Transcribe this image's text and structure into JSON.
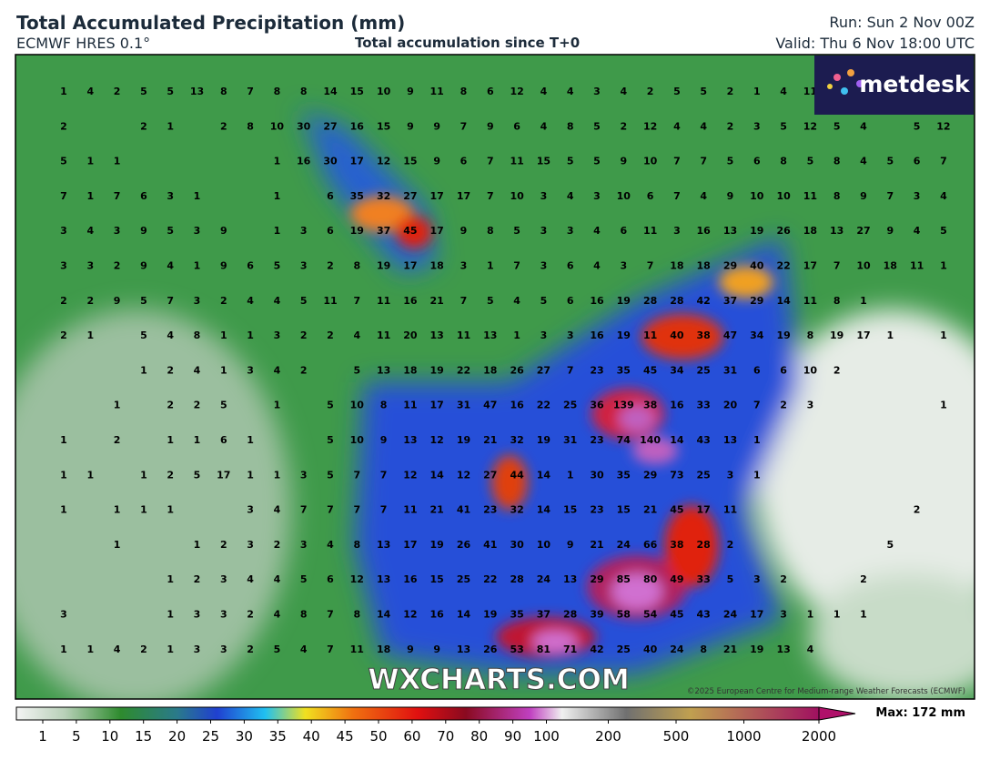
{
  "header": {
    "title": "Total Accumulated Precipitation (mm)",
    "model": "ECMWF HRES 0.1°",
    "subtitle": "Total accumulation since T+0",
    "run": "Run: Sun 2 Nov 00Z",
    "valid": "Valid: Thu 6 Nov 18:00 UTC"
  },
  "logo": "metdesk",
  "watermark": "WXCHARTS.COM",
  "copyright": "©2025 European Centre for Medium-range Weather Forecasts (ECMWF)",
  "max_label": "Max: 172 mm",
  "colorbar_ticks": [
    1,
    5,
    10,
    15,
    20,
    25,
    30,
    35,
    40,
    45,
    50,
    60,
    70,
    80,
    90,
    100,
    200,
    500,
    1000,
    2000
  ],
  "grid": {
    "rows": [
      [
        1,
        4,
        2,
        5,
        5,
        13,
        8,
        7,
        8,
        8,
        14,
        15,
        10,
        9,
        11,
        8,
        6,
        12,
        4,
        4,
        3,
        4,
        2,
        5,
        5,
        2,
        1,
        4,
        11,
        null,
        null,
        null,
        null,
        null
      ],
      [
        2,
        null,
        null,
        2,
        1,
        null,
        2,
        8,
        10,
        30,
        27,
        16,
        15,
        9,
        9,
        7,
        9,
        6,
        4,
        8,
        5,
        2,
        12,
        4,
        4,
        2,
        3,
        5,
        12,
        5,
        4,
        null,
        5,
        12
      ],
      [
        5,
        1,
        1,
        null,
        null,
        null,
        null,
        null,
        1,
        16,
        30,
        17,
        12,
        15,
        9,
        6,
        7,
        11,
        15,
        5,
        5,
        9,
        10,
        7,
        7,
        5,
        6,
        8,
        5,
        8,
        4,
        5,
        6,
        7
      ],
      [
        7,
        1,
        7,
        6,
        3,
        1,
        null,
        null,
        1,
        null,
        6,
        35,
        32,
        27,
        17,
        17,
        7,
        10,
        3,
        4,
        3,
        10,
        6,
        7,
        4,
        9,
        10,
        10,
        11,
        8,
        9,
        7,
        3,
        4
      ],
      [
        3,
        4,
        3,
        9,
        5,
        3,
        9,
        null,
        1,
        3,
        6,
        19,
        37,
        45,
        17,
        9,
        8,
        5,
        3,
        3,
        4,
        6,
        11,
        3,
        16,
        13,
        19,
        26,
        18,
        13,
        27,
        9,
        4,
        5
      ],
      [
        3,
        3,
        2,
        9,
        4,
        1,
        9,
        6,
        5,
        3,
        2,
        8,
        19,
        17,
        18,
        3,
        1,
        7,
        3,
        6,
        4,
        3,
        7,
        18,
        18,
        29,
        40,
        22,
        17,
        7,
        10,
        18,
        11,
        1
      ],
      [
        2,
        2,
        9,
        5,
        7,
        3,
        2,
        4,
        4,
        5,
        11,
        7,
        11,
        16,
        21,
        7,
        5,
        4,
        5,
        6,
        16,
        19,
        28,
        28,
        42,
        37,
        29,
        14,
        11,
        8,
        1,
        null,
        null,
        null
      ],
      [
        2,
        1,
        null,
        5,
        4,
        8,
        1,
        1,
        3,
        2,
        2,
        4,
        11,
        20,
        13,
        11,
        13,
        1,
        3,
        3,
        16,
        19,
        11,
        40,
        38,
        47,
        34,
        19,
        8,
        19,
        17,
        1,
        null,
        1
      ],
      [
        null,
        null,
        null,
        1,
        2,
        4,
        1,
        3,
        4,
        2,
        null,
        5,
        13,
        18,
        19,
        22,
        18,
        26,
        27,
        7,
        23,
        35,
        45,
        34,
        25,
        31,
        6,
        6,
        10,
        2,
        null,
        null,
        null,
        null
      ],
      [
        null,
        null,
        1,
        null,
        2,
        2,
        5,
        null,
        1,
        null,
        5,
        10,
        8,
        11,
        17,
        31,
        47,
        16,
        22,
        25,
        36,
        139,
        38,
        16,
        33,
        20,
        7,
        2,
        3,
        null,
        null,
        null,
        null,
        1
      ],
      [
        1,
        null,
        2,
        null,
        1,
        1,
        6,
        1,
        null,
        null,
        5,
        10,
        9,
        13,
        12,
        19,
        21,
        32,
        19,
        31,
        23,
        74,
        140,
        14,
        43,
        13,
        1,
        null,
        null,
        null,
        null,
        null,
        null,
        null
      ],
      [
        1,
        1,
        null,
        1,
        2,
        5,
        17,
        1,
        1,
        3,
        5,
        7,
        7,
        12,
        14,
        12,
        27,
        44,
        14,
        1,
        30,
        35,
        29,
        73,
        25,
        3,
        1,
        null,
        null,
        null,
        null,
        null,
        null,
        null
      ],
      [
        1,
        null,
        1,
        1,
        1,
        null,
        null,
        3,
        4,
        7,
        7,
        7,
        7,
        11,
        21,
        41,
        23,
        32,
        14,
        15,
        23,
        15,
        21,
        45,
        17,
        11,
        null,
        null,
        null,
        null,
        null,
        null,
        2,
        null
      ],
      [
        null,
        null,
        1,
        null,
        null,
        1,
        2,
        3,
        2,
        3,
        4,
        8,
        13,
        17,
        19,
        26,
        41,
        30,
        10,
        9,
        21,
        24,
        66,
        38,
        28,
        2,
        null,
        null,
        null,
        null,
        null,
        5,
        null,
        null
      ],
      [
        null,
        null,
        null,
        null,
        1,
        2,
        3,
        4,
        4,
        5,
        6,
        12,
        13,
        16,
        15,
        25,
        22,
        28,
        24,
        13,
        29,
        85,
        80,
        49,
        33,
        5,
        3,
        2,
        null,
        null,
        2,
        null,
        null,
        null
      ],
      [
        3,
        null,
        null,
        null,
        1,
        3,
        3,
        2,
        4,
        8,
        7,
        8,
        14,
        12,
        16,
        14,
        19,
        35,
        37,
        28,
        39,
        58,
        54,
        45,
        43,
        24,
        17,
        3,
        1,
        1,
        1,
        null,
        null,
        null
      ],
      [
        1,
        1,
        4,
        2,
        1,
        3,
        3,
        2,
        5,
        4,
        7,
        11,
        18,
        9,
        9,
        13,
        26,
        53,
        81,
        71,
        42,
        25,
        40,
        24,
        8,
        21,
        19,
        13,
        4,
        null,
        null,
        null,
        null,
        null
      ]
    ]
  }
}
